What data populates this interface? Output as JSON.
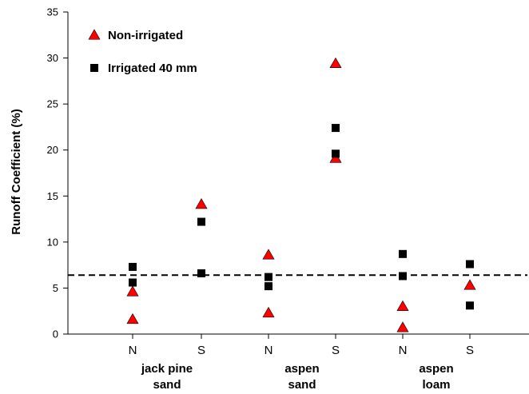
{
  "chart_data": {
    "type": "scatter",
    "ylabel": "Runoff Coefficient (%)",
    "ylim": [
      0,
      35
    ],
    "yticks": [
      0,
      5,
      10,
      15,
      20,
      25,
      30,
      35
    ],
    "categories": [
      "N",
      "S",
      "N",
      "S",
      "N",
      "S"
    ],
    "groups": [
      {
        "label_line1": "jack pine",
        "label_line2": "sand",
        "categories": [
          0,
          1
        ]
      },
      {
        "label_line1": "aspen",
        "label_line2": "sand",
        "categories": [
          2,
          3
        ]
      },
      {
        "label_line1": "aspen",
        "label_line2": "loam",
        "categories": [
          4,
          5
        ]
      }
    ],
    "reference_line": {
      "y": 6.4,
      "style": "dashed"
    },
    "legend_position": "top-left",
    "series": [
      {
        "name": "Non-irrigated",
        "marker": "triangle",
        "color": "#ff0000",
        "points": [
          {
            "category": 0,
            "y": 4.6
          },
          {
            "category": 0,
            "y": 1.6
          },
          {
            "category": 1,
            "y": 14.1
          },
          {
            "category": 2,
            "y": 8.6
          },
          {
            "category": 2,
            "y": 2.3
          },
          {
            "category": 3,
            "y": 29.4
          },
          {
            "category": 3,
            "y": 19.1
          },
          {
            "category": 4,
            "y": 3.0
          },
          {
            "category": 4,
            "y": 0.7
          },
          {
            "category": 5,
            "y": 5.3
          }
        ]
      },
      {
        "name": "Irrigated 40 mm",
        "marker": "square",
        "color": "#000000",
        "points": [
          {
            "category": 0,
            "y": 7.3
          },
          {
            "category": 0,
            "y": 5.6
          },
          {
            "category": 1,
            "y": 12.2
          },
          {
            "category": 1,
            "y": 6.6
          },
          {
            "category": 2,
            "y": 6.2
          },
          {
            "category": 2,
            "y": 5.2
          },
          {
            "category": 3,
            "y": 22.4
          },
          {
            "category": 3,
            "y": 19.6
          },
          {
            "category": 4,
            "y": 8.7
          },
          {
            "category": 4,
            "y": 6.3
          },
          {
            "category": 5,
            "y": 7.6
          },
          {
            "category": 5,
            "y": 3.1
          }
        ]
      }
    ]
  }
}
